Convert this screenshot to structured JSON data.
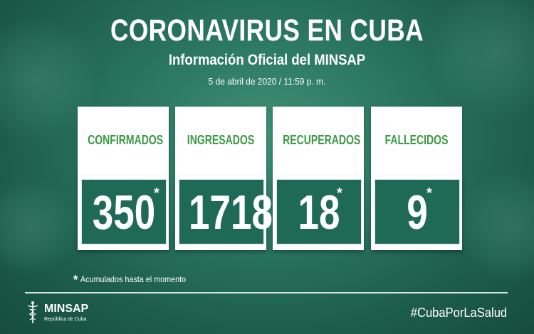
{
  "header": {
    "title": "CORONAVIRUS EN CUBA",
    "subtitle": "Información Oficial del MINSAP",
    "date": "5 de abril de 2020 / 11:59 p. m."
  },
  "cards": [
    {
      "label": "CONFIRMADOS",
      "value": "350",
      "star": "*"
    },
    {
      "label": "INGRESADOS",
      "value": "1718",
      "star": ""
    },
    {
      "label": "RECUPERADOS",
      "value": "18",
      "star": "*"
    },
    {
      "label": "FALLECIDOS",
      "value": "9",
      "star": "*"
    }
  ],
  "footnote": {
    "star": "*",
    "text": "Acumulados hasta el momento"
  },
  "logo": {
    "name": "MINSAP",
    "sub": "República de Cuba",
    "icon": "caduceus-icon"
  },
  "hashtag": "#CubaPorLaSalud",
  "colors": {
    "label_green": "#3a9a45",
    "value_bg": "#1f6a56",
    "background": "#2b7760"
  }
}
